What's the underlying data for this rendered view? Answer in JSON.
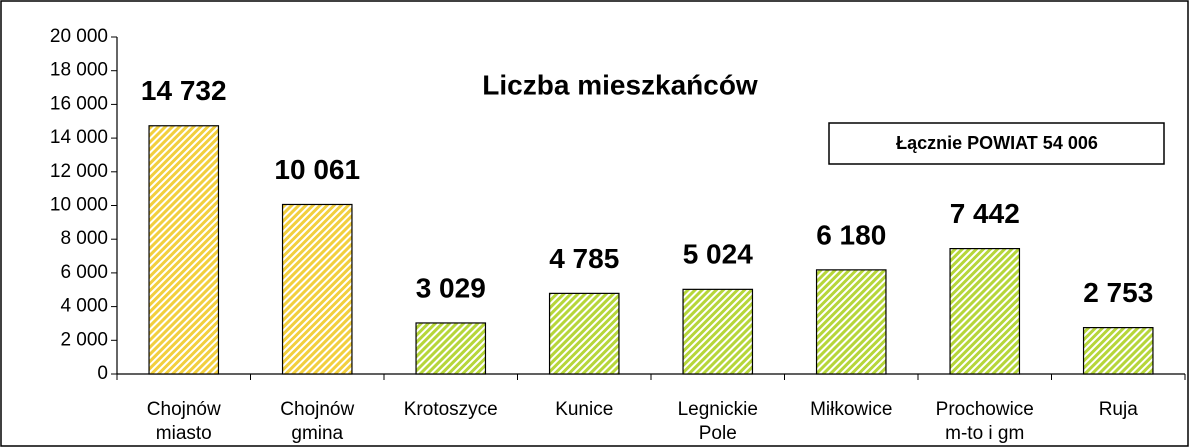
{
  "chart_data": {
    "type": "bar",
    "title": "Liczba mieszkańców",
    "annotation": "Łącznie POWIAT 54 006",
    "categories": [
      "Chojnów miasto",
      "Chojnów gmina",
      "Krotoszyce",
      "Kunice",
      "Legnickie Pole",
      "Miłkowice",
      "Prochowice m-to i gm",
      "Ruja"
    ],
    "values": [
      14732,
      10061,
      3029,
      4785,
      5024,
      6180,
      7442,
      2753
    ],
    "value_labels": [
      "14 732",
      "10 061",
      "3 029",
      "4 785",
      "5 024",
      "6 180",
      "7 442",
      "2 753"
    ],
    "colors": [
      "#f2cf3e",
      "#f2cf3e",
      "#b6d63a",
      "#b6d63a",
      "#b6d63a",
      "#b6d63a",
      "#b6d63a",
      "#b6d63a"
    ],
    "ylim": [
      0,
      20000
    ],
    "yticks": [
      {
        "value": 0,
        "label": "0"
      },
      {
        "value": 2000,
        "label": "2 000"
      },
      {
        "value": 4000,
        "label": "4 000"
      },
      {
        "value": 6000,
        "label": "6 000"
      },
      {
        "value": 8000,
        "label": "8 000"
      },
      {
        "value": 10000,
        "label": "10 000"
      },
      {
        "value": 12000,
        "label": "12 000"
      },
      {
        "value": 14000,
        "label": "14 000"
      },
      {
        "value": 16000,
        "label": "16 000"
      },
      {
        "value": 18000,
        "label": "18 000"
      },
      {
        "value": 20000,
        "label": "20 000"
      }
    ],
    "grid": false
  }
}
